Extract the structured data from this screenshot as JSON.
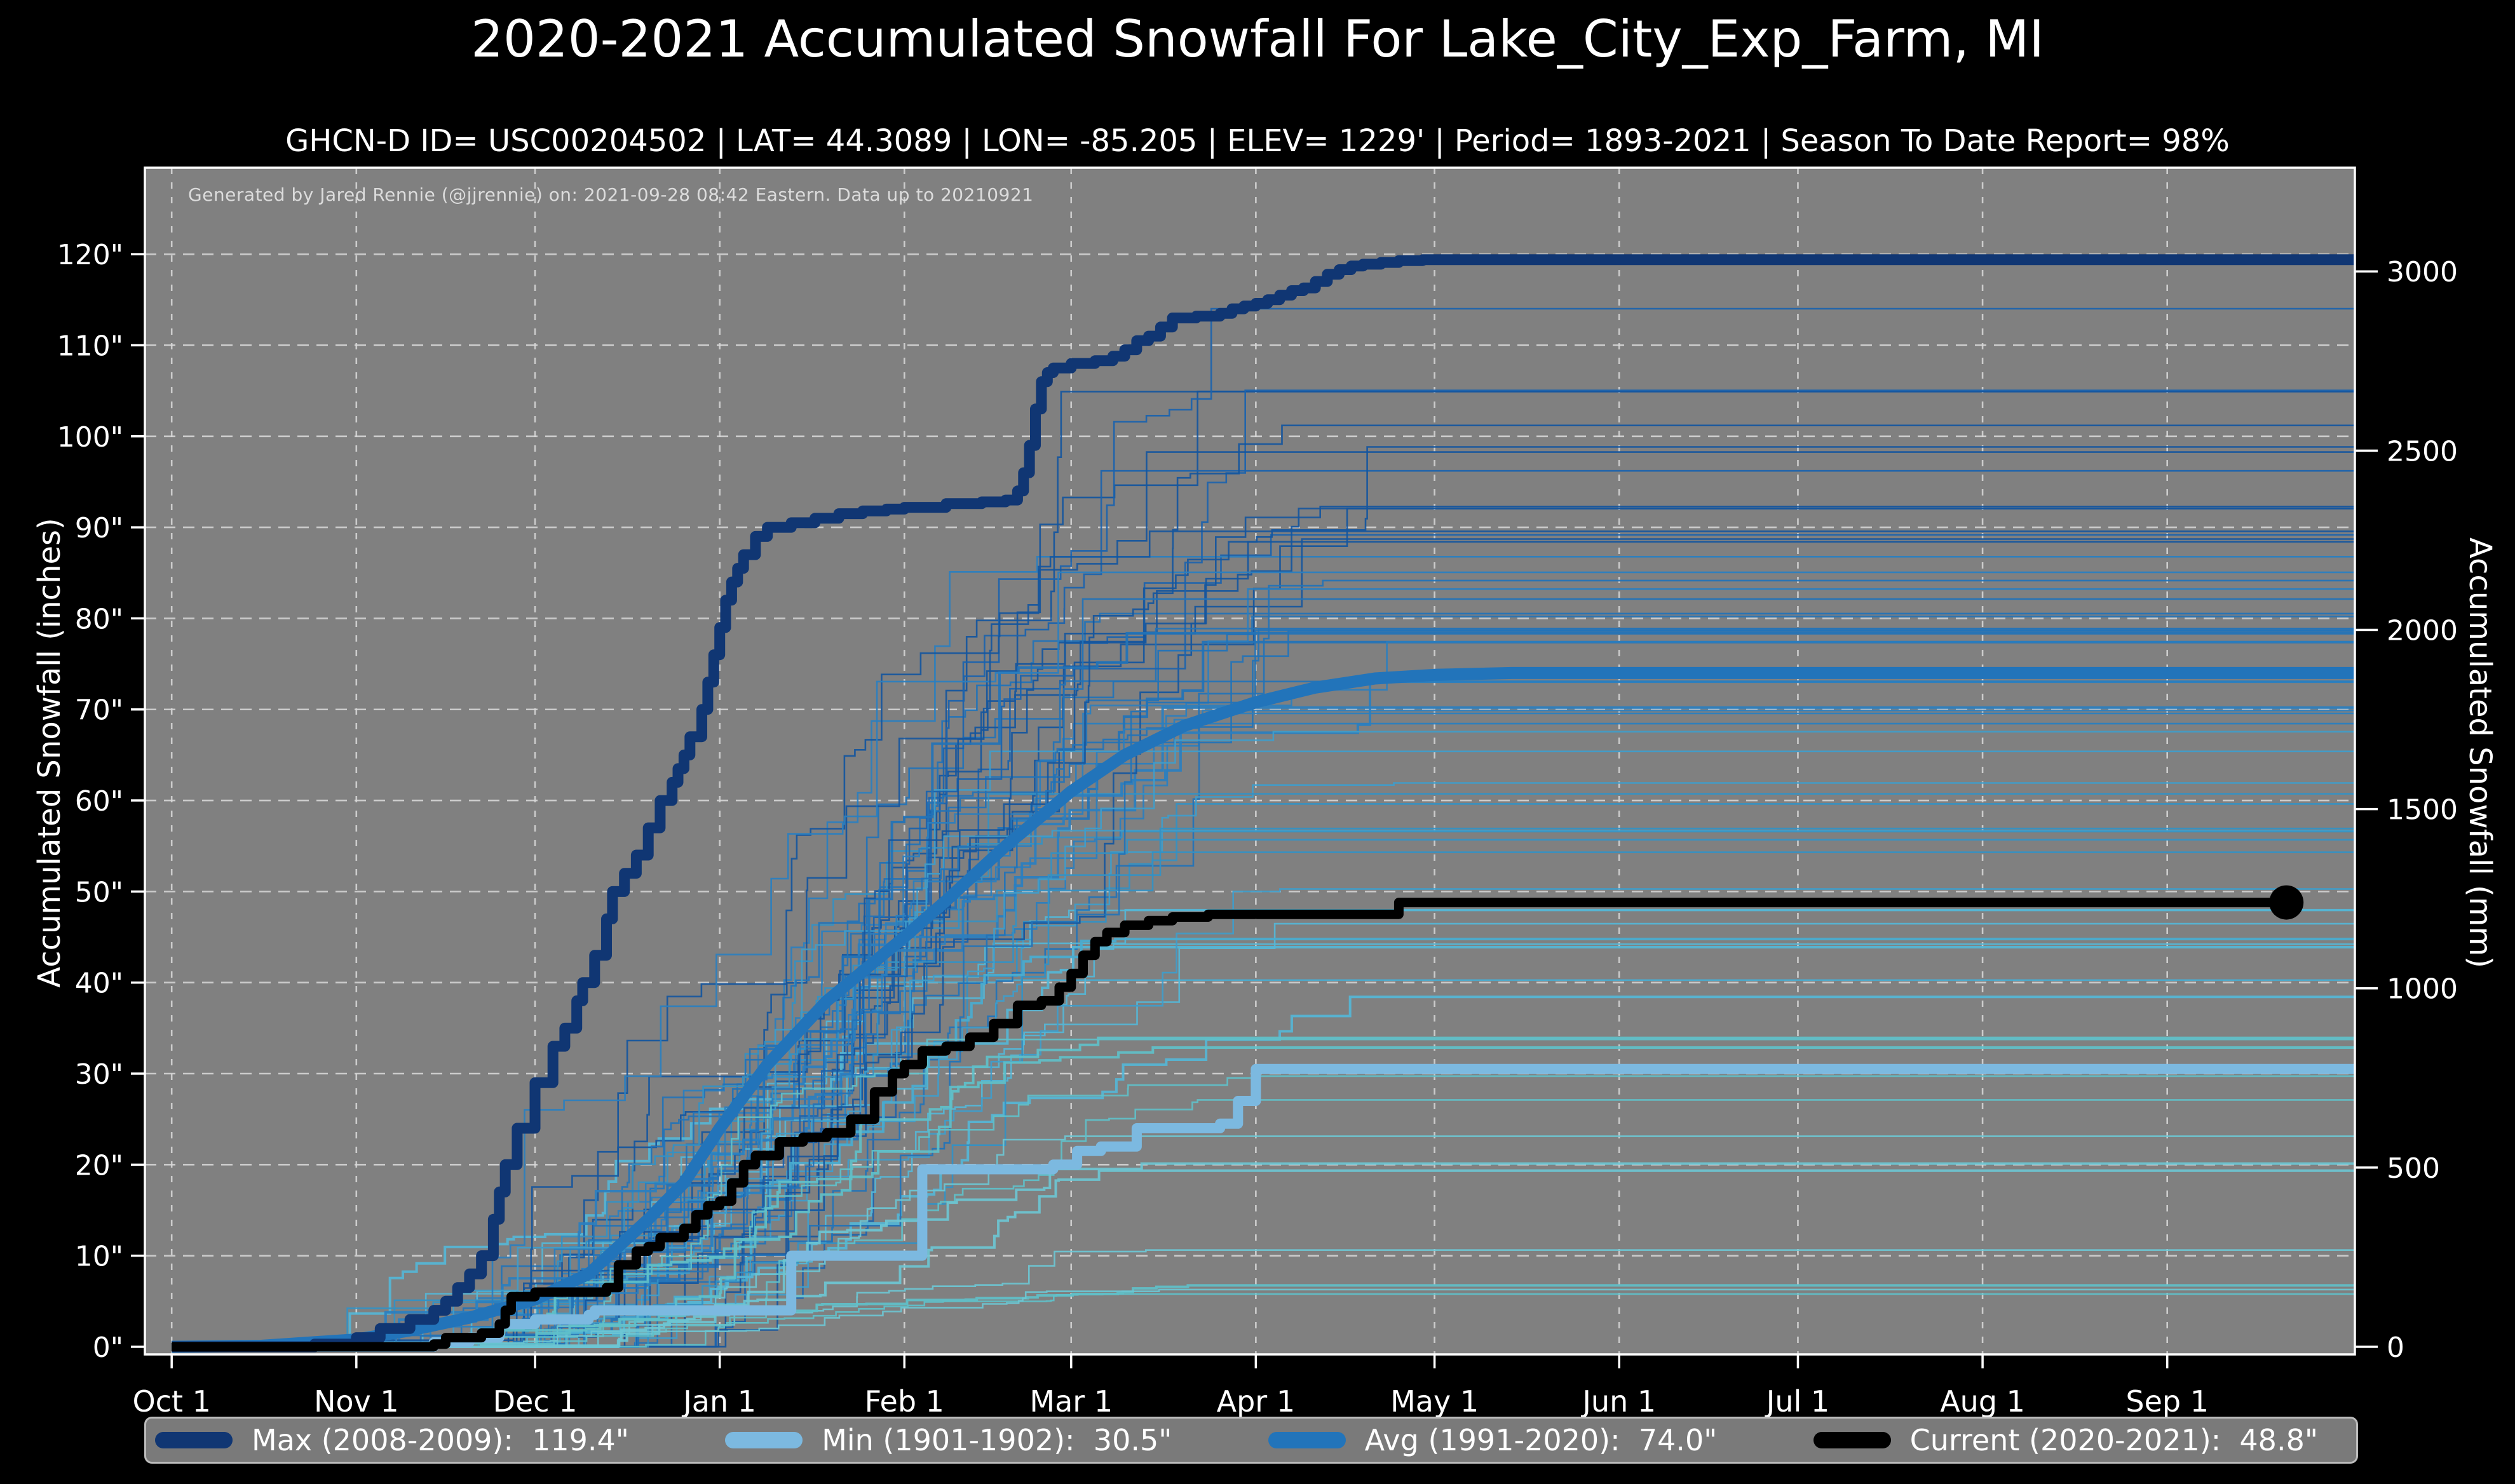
{
  "chart": {
    "title": "2020-2021 Accumulated Snowfall For Lake_City_Exp_Farm, MI",
    "subtitle": "GHCN-D ID= USC00204502 | LAT= 44.3089 | LON= -85.205 | ELEV= 1229' | Period= 1893-2021 | Season To Date Report= 98%",
    "annotation": "Generated by Jared Rennie (@jjrennie) on: 2021-09-28 08:42 Eastern. Data up to 20210921"
  },
  "colors": {
    "background": "#000000",
    "plot_bg": "#808080",
    "grid": "#d9d9d9",
    "spine": "#ffffff",
    "text": "#ffffff",
    "annotation_text": "#dcdcdc",
    "legend_bg": "#7a7a7a",
    "legend_border": "#bcbcbc",
    "max_line": "#103673",
    "min_line": "#7cb9e0",
    "avg_line": "#2274ba",
    "current_line": "#000000"
  },
  "chart_data": {
    "type": "line",
    "title": "2020-2021 Accumulated Snowfall For Lake_City_Exp_Farm, MI",
    "x_axis": {
      "tick_labels": [
        "Oct 1",
        "Nov 1",
        "Dec 1",
        "Jan 1",
        "Feb 1",
        "Mar 1",
        "Apr 1",
        "May 1",
        "Jun 1",
        "Jul 1",
        "Aug 1",
        "Sep 1"
      ],
      "tick_days": [
        0,
        31,
        61,
        92,
        123,
        151,
        182,
        212,
        243,
        273,
        304,
        335
      ],
      "domain_days": [
        -4.5,
        366.5
      ],
      "grid": true
    },
    "y_left": {
      "label": "Accumulated Snowfall (inches)",
      "tick_labels": [
        "0\"",
        "10\"",
        "20\"",
        "30\"",
        "40\"",
        "50\"",
        "60\"",
        "70\"",
        "80\"",
        "90\"",
        "100\"",
        "110\"",
        "120\""
      ],
      "tick_values": [
        0,
        10,
        20,
        30,
        40,
        50,
        60,
        70,
        80,
        90,
        100,
        110,
        120
      ],
      "domain": [
        -0.84,
        129.5
      ],
      "grid": true
    },
    "y_right": {
      "label": "Accumulated Snowfall (mm)",
      "tick_labels": [
        "0",
        "500",
        "1000",
        "1500",
        "2000",
        "2500",
        "3000"
      ],
      "tick_values_mm": [
        0,
        500,
        1000,
        1500,
        2000,
        2500,
        3000
      ],
      "mm_per_inch": 25.4
    },
    "legend_position": "bottom",
    "series": [
      {
        "name": "min",
        "label": "Min (1901-1902):  30.5\"",
        "color": "#7cb9e0",
        "width": 16,
        "interp": "step",
        "final_in": 30.5,
        "points": [
          [
            0,
            0
          ],
          [
            40,
            0
          ],
          [
            44,
            0.5
          ],
          [
            50,
            1
          ],
          [
            55,
            2.5
          ],
          [
            61,
            3
          ],
          [
            70,
            3.5
          ],
          [
            71,
            4
          ],
          [
            101,
            4
          ],
          [
            104,
            10
          ],
          [
            124,
            10
          ],
          [
            126,
            19.5
          ],
          [
            148,
            20
          ],
          [
            152,
            21.5
          ],
          [
            156,
            22
          ],
          [
            162,
            24
          ],
          [
            176,
            24.5
          ],
          [
            179,
            27
          ],
          [
            182,
            30.5
          ],
          [
            367,
            30.5
          ]
        ]
      },
      {
        "name": "avg",
        "label": "Avg (1991-2020):  74.0\"",
        "color": "#2274ba",
        "width": 19,
        "interp": "linear",
        "final_in": 74.0,
        "points": [
          [
            0,
            0
          ],
          [
            15,
            0.1
          ],
          [
            31,
            0.8
          ],
          [
            40,
            1.8
          ],
          [
            50,
            3.2
          ],
          [
            61,
            5.2
          ],
          [
            70,
            8
          ],
          [
            80,
            14
          ],
          [
            86,
            18
          ],
          [
            92,
            24
          ],
          [
            100,
            31
          ],
          [
            110,
            38
          ],
          [
            123,
            45
          ],
          [
            130,
            49
          ],
          [
            140,
            55
          ],
          [
            151,
            61
          ],
          [
            160,
            65
          ],
          [
            170,
            68.2
          ],
          [
            182,
            70.8
          ],
          [
            192,
            72.4
          ],
          [
            202,
            73.4
          ],
          [
            212,
            73.8
          ],
          [
            225,
            74
          ],
          [
            367,
            74
          ]
        ]
      },
      {
        "name": "max",
        "label": "Max (2008-2009):  119.4\"",
        "color": "#103673",
        "width": 17,
        "interp": "step",
        "final_in": 119.4,
        "points": [
          [
            0,
            0
          ],
          [
            24,
            0.3
          ],
          [
            31,
            1
          ],
          [
            35,
            2
          ],
          [
            40,
            3
          ],
          [
            44,
            4
          ],
          [
            46,
            5
          ],
          [
            48,
            6.5
          ],
          [
            50,
            8
          ],
          [
            52,
            10
          ],
          [
            54,
            14
          ],
          [
            55,
            17
          ],
          [
            56,
            20
          ],
          [
            58,
            24
          ],
          [
            61,
            29
          ],
          [
            64,
            33
          ],
          [
            66,
            35
          ],
          [
            68,
            38
          ],
          [
            69,
            40
          ],
          [
            71,
            43
          ],
          [
            73,
            47
          ],
          [
            74,
            50
          ],
          [
            76,
            52
          ],
          [
            78,
            54
          ],
          [
            80,
            57
          ],
          [
            82,
            60
          ],
          [
            84,
            62
          ],
          [
            85,
            63.5
          ],
          [
            86,
            65
          ],
          [
            87,
            67
          ],
          [
            89,
            70
          ],
          [
            90,
            73
          ],
          [
            91,
            76
          ],
          [
            92,
            79
          ],
          [
            93,
            82
          ],
          [
            94,
            84
          ],
          [
            95,
            85.5
          ],
          [
            96,
            87
          ],
          [
            98,
            89
          ],
          [
            100,
            90
          ],
          [
            104,
            90.5
          ],
          [
            108,
            91
          ],
          [
            112,
            91.5
          ],
          [
            116,
            91.8
          ],
          [
            120,
            92
          ],
          [
            123,
            92.2
          ],
          [
            130,
            92.6
          ],
          [
            136,
            92.8
          ],
          [
            140,
            93
          ],
          [
            142,
            94
          ],
          [
            143,
            96
          ],
          [
            144,
            99
          ],
          [
            145,
            103
          ],
          [
            146,
            106
          ],
          [
            147,
            107
          ],
          [
            148,
            107.5
          ],
          [
            151,
            108
          ],
          [
            155,
            108.3
          ],
          [
            158,
            108.8
          ],
          [
            160,
            109.5
          ],
          [
            162,
            110.5
          ],
          [
            164,
            111
          ],
          [
            166,
            112
          ],
          [
            168,
            113
          ],
          [
            172,
            113.2
          ],
          [
            176,
            113.5
          ],
          [
            178,
            114
          ],
          [
            180,
            114.3
          ],
          [
            182,
            114.6
          ],
          [
            184,
            115
          ],
          [
            186,
            115.5
          ],
          [
            188,
            116
          ],
          [
            190,
            116.3
          ],
          [
            192,
            117
          ],
          [
            194,
            117.8
          ],
          [
            196,
            118.3
          ],
          [
            198,
            118.7
          ],
          [
            200,
            118.9
          ],
          [
            203,
            119.1
          ],
          [
            206,
            119.3
          ],
          [
            210,
            119.4
          ],
          [
            367,
            119.4
          ]
        ]
      },
      {
        "name": "current",
        "label": "Current (2020-2021):  48.8\"",
        "color": "#000000",
        "width": 15,
        "interp": "step",
        "final_in": 48.8,
        "end_marker": true,
        "marker_radius": 27,
        "end_day": 355,
        "points": [
          [
            0,
            0
          ],
          [
            44,
            0.3
          ],
          [
            46,
            1
          ],
          [
            52,
            1.5
          ],
          [
            55,
            2.5
          ],
          [
            56,
            4
          ],
          [
            57,
            5.5
          ],
          [
            61,
            6
          ],
          [
            73,
            6.5
          ],
          [
            75,
            9
          ],
          [
            78,
            10.5
          ],
          [
            80,
            11
          ],
          [
            82,
            12
          ],
          [
            86,
            13
          ],
          [
            88,
            14.5
          ],
          [
            90,
            15.5
          ],
          [
            92,
            16
          ],
          [
            94,
            18
          ],
          [
            96,
            20
          ],
          [
            98,
            21
          ],
          [
            102,
            22.5
          ],
          [
            106,
            23
          ],
          [
            110,
            23.5
          ],
          [
            114,
            25
          ],
          [
            118,
            28
          ],
          [
            121,
            30
          ],
          [
            123,
            31
          ],
          [
            126,
            32.5
          ],
          [
            130,
            33
          ],
          [
            134,
            34
          ],
          [
            138,
            35.5
          ],
          [
            142,
            37.5
          ],
          [
            146,
            38
          ],
          [
            149,
            39.5
          ],
          [
            151,
            41
          ],
          [
            153,
            43
          ],
          [
            155,
            44.5
          ],
          [
            157,
            45.5
          ],
          [
            160,
            46.3
          ],
          [
            164,
            46.8
          ],
          [
            168,
            47.2
          ],
          [
            174,
            47.5
          ],
          [
            203,
            47.5
          ],
          [
            206,
            48.8
          ],
          [
            355,
            48.8
          ]
        ]
      }
    ],
    "ensemble": {
      "description": "historical seasons 1893-2021 drawn as thin flat-tailed step lines",
      "count": 66,
      "low_count": 12,
      "seed": 1893,
      "final_range_in": [
        5,
        115
      ],
      "width": 2.6,
      "opacity": 0.92,
      "palette_tiers": [
        {
          "max_final": 34,
          "colors": [
            "#5fc0c9",
            "#6cc6d2"
          ]
        },
        {
          "max_final": 50,
          "colors": [
            "#55b6d6",
            "#49add0"
          ]
        },
        {
          "max_final": 68,
          "colors": [
            "#3f9dcb",
            "#3391c4"
          ]
        },
        {
          "max_final": 88,
          "colors": [
            "#2a7fc0",
            "#2273b8"
          ]
        },
        {
          "max_final": 999,
          "colors": [
            "#1b63ae",
            "#15569e"
          ]
        }
      ]
    }
  },
  "legend": {
    "items": [
      {
        "name": "max",
        "label": "Max (2008-2009):  119.4\"",
        "color": "#103673"
      },
      {
        "name": "min",
        "label": "Min (1901-1902):  30.5\"",
        "color": "#7cb9e0"
      },
      {
        "name": "avg",
        "label": "Avg (1991-2020):  74.0\"",
        "color": "#2274ba"
      },
      {
        "name": "current",
        "label": "Current (2020-2021):  48.8\"",
        "color": "#000000"
      }
    ]
  }
}
